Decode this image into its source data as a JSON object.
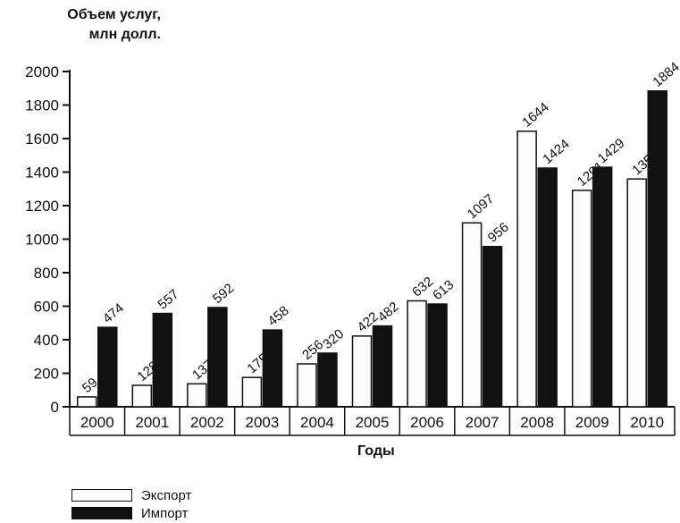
{
  "chart_data": {
    "type": "bar",
    "ylabel_line1": "Объем услуг,",
    "ylabel_line2": "млн долл.",
    "xlabel": "Годы",
    "categories": [
      "2000",
      "2001",
      "2002",
      "2003",
      "2004",
      "2005",
      "2006",
      "2007",
      "2008",
      "2009",
      "2010"
    ],
    "series": [
      {
        "name": "Экспорт",
        "values": [
          59,
          128,
          137,
          175,
          256,
          422,
          632,
          1097,
          1644,
          1291,
          1359
        ],
        "color": "#fbfbfb"
      },
      {
        "name": "Импорт",
        "values": [
          474,
          557,
          592,
          458,
          320,
          482,
          613,
          956,
          1424,
          1429,
          1884
        ],
        "color": "#111111"
      }
    ],
    "ylim": [
      0,
      2000
    ],
    "yticks": [
      0,
      200,
      400,
      600,
      800,
      1000,
      1200,
      1400,
      1600,
      1800,
      2000
    ],
    "grid": false,
    "legend_position": "bottom-left"
  }
}
